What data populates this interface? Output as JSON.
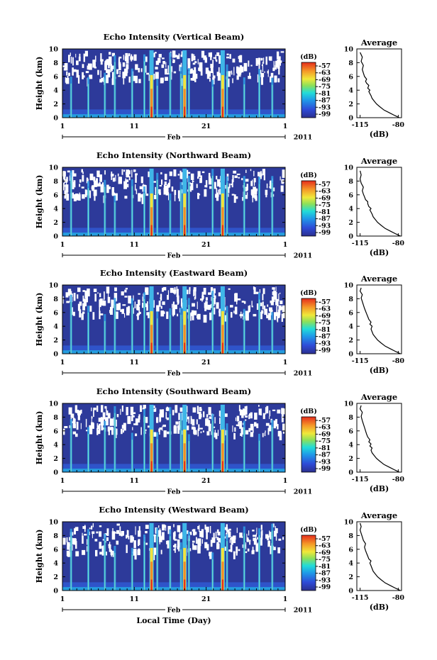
{
  "figure": {
    "xlabel": "Local Time (Day)"
  },
  "chart_data": [
    {
      "type": "heatmap",
      "title": "Echo Intensity (Vertical Beam)",
      "ylabel": "Height (km)",
      "ylim": [
        0,
        10
      ],
      "yticks": [
        "0",
        "2",
        "4",
        "6",
        "8",
        "10"
      ],
      "xlim": [
        1,
        32
      ],
      "xticks": [
        "1",
        "11",
        "21",
        "1"
      ],
      "month_label": "Feb",
      "year_label": "2011",
      "colorbar": {
        "label": "(dB)",
        "ticks": [
          "-57",
          "-63",
          "-69",
          "-75",
          "-81",
          "-87",
          "-93",
          "-99"
        ]
      },
      "average_profile": {
        "type": "line",
        "title": "Average",
        "xlabel": "(dB)",
        "xticks": [
          "-115",
          "-80"
        ],
        "xlim": [
          -118,
          -77
        ],
        "yticks": [
          "0",
          "2",
          "4",
          "6",
          "8",
          "10"
        ],
        "ylim": [
          0,
          10
        ],
        "x": [
          -79,
          -83,
          -88,
          -93,
          -97,
          -100,
          -102,
          -104,
          -105,
          -106,
          -107,
          -106,
          -108,
          -107,
          -109,
          -110,
          -109,
          -111,
          -112,
          -113,
          -112,
          -114,
          -113,
          -115
        ],
        "y": [
          0.0,
          0.3,
          0.7,
          1.1,
          1.6,
          2.0,
          2.4,
          2.8,
          3.2,
          3.5,
          3.8,
          4.0,
          4.3,
          4.7,
          5.0,
          5.3,
          5.6,
          6.0,
          6.5,
          7.0,
          7.6,
          8.2,
          8.8,
          9.5
        ]
      }
    },
    {
      "type": "heatmap",
      "title": "Echo Intensity (Northward Beam)",
      "ylabel": "Height (km)",
      "ylim": [
        0,
        10
      ],
      "yticks": [
        "0",
        "2",
        "4",
        "6",
        "8",
        "10"
      ],
      "xlim": [
        1,
        32
      ],
      "xticks": [
        "1",
        "11",
        "21",
        "1"
      ],
      "month_label": "Feb",
      "year_label": "2011",
      "colorbar": {
        "label": "(dB)",
        "ticks": [
          "-57",
          "-63",
          "-69",
          "-75",
          "-81",
          "-87",
          "-93",
          "-99"
        ]
      },
      "average_profile": {
        "type": "line",
        "title": "Average",
        "xlabel": "(dB)",
        "xticks": [
          "-115",
          "-80"
        ],
        "xlim": [
          -118,
          -77
        ],
        "yticks": [
          "0",
          "2",
          "4",
          "6",
          "8",
          "10"
        ],
        "ylim": [
          0,
          10
        ],
        "x": [
          -78,
          -82,
          -87,
          -92,
          -96,
          -99,
          -101,
          -103,
          -104,
          -105,
          -106,
          -105,
          -107,
          -108,
          -108,
          -110,
          -111,
          -112,
          -113,
          -112,
          -114,
          -115,
          -114,
          -115
        ],
        "y": [
          0.0,
          0.3,
          0.7,
          1.1,
          1.6,
          2.0,
          2.4,
          2.8,
          3.2,
          3.5,
          3.8,
          4.0,
          4.3,
          4.7,
          5.0,
          5.3,
          5.7,
          6.1,
          6.6,
          7.1,
          7.7,
          8.3,
          8.9,
          9.5
        ]
      }
    },
    {
      "type": "heatmap",
      "title": "Echo Intensity (Eastward Beam)",
      "ylabel": "Height (km)",
      "ylim": [
        0,
        10
      ],
      "yticks": [
        "0",
        "2",
        "4",
        "6",
        "8",
        "10"
      ],
      "xlim": [
        1,
        32
      ],
      "xticks": [
        "1",
        "11",
        "21",
        "1"
      ],
      "month_label": "Feb",
      "year_label": "2011",
      "colorbar": {
        "label": "(dB)",
        "ticks": [
          "-57",
          "-63",
          "-69",
          "-75",
          "-81",
          "-87",
          "-93",
          "-99"
        ]
      },
      "average_profile": {
        "type": "line",
        "title": "Average",
        "xlabel": "(dB)",
        "xticks": [
          "-115",
          "-80"
        ],
        "xlim": [
          -118,
          -77
        ],
        "yticks": [
          "0",
          "2",
          "4",
          "6",
          "8",
          "10"
        ],
        "ylim": [
          0,
          10
        ],
        "x": [
          -78,
          -82,
          -87,
          -92,
          -96,
          -99,
          -101,
          -103,
          -104,
          -105,
          -104,
          -106,
          -105,
          -107,
          -108,
          -109,
          -110,
          -111,
          -112,
          -113,
          -114,
          -113,
          -115,
          -114
        ],
        "y": [
          0.0,
          0.3,
          0.7,
          1.1,
          1.6,
          2.0,
          2.4,
          2.8,
          3.2,
          3.6,
          4.0,
          4.3,
          4.6,
          5.0,
          5.4,
          5.8,
          6.2,
          6.6,
          7.1,
          7.6,
          8.1,
          8.6,
          9.1,
          9.6
        ]
      }
    },
    {
      "type": "heatmap",
      "title": "Echo Intensity (Southward Beam)",
      "ylabel": "Height (km)",
      "ylim": [
        0,
        10
      ],
      "yticks": [
        "0",
        "2",
        "4",
        "6",
        "8",
        "10"
      ],
      "xlim": [
        1,
        32
      ],
      "xticks": [
        "1",
        "11",
        "21",
        "1"
      ],
      "month_label": "Feb",
      "year_label": "2011",
      "colorbar": {
        "label": "(dB)",
        "ticks": [
          "-57",
          "-63",
          "-69",
          "-75",
          "-81",
          "-87",
          "-93",
          "-99"
        ]
      },
      "average_profile": {
        "type": "line",
        "title": "Average",
        "xlabel": "(dB)",
        "xticks": [
          "-115",
          "-80"
        ],
        "xlim": [
          -118,
          -77
        ],
        "yticks": [
          "0",
          "2",
          "4",
          "6",
          "8",
          "10"
        ],
        "ylim": [
          0,
          10
        ],
        "x": [
          -79,
          -83,
          -88,
          -93,
          -97,
          -100,
          -102,
          -104,
          -105,
          -104,
          -106,
          -105,
          -107,
          -106,
          -108,
          -109,
          -110,
          -111,
          -112,
          -113,
          -114,
          -113,
          -115,
          -114
        ],
        "y": [
          0.0,
          0.3,
          0.7,
          1.1,
          1.6,
          2.0,
          2.4,
          2.8,
          3.2,
          3.5,
          3.8,
          4.1,
          4.4,
          4.7,
          5.1,
          5.5,
          6.0,
          6.5,
          7.0,
          7.5,
          8.1,
          8.7,
          9.2,
          9.7
        ]
      }
    },
    {
      "type": "heatmap",
      "title": "Echo Intensity (Westward Beam)",
      "ylabel": "Height (km)",
      "ylim": [
        0,
        10
      ],
      "yticks": [
        "0",
        "2",
        "4",
        "6",
        "8",
        "10"
      ],
      "xlim": [
        1,
        32
      ],
      "xticks": [
        "1",
        "11",
        "21",
        "1"
      ],
      "month_label": "Feb",
      "year_label": "2011",
      "colorbar": {
        "label": "(dB)",
        "ticks": [
          "-57",
          "-63",
          "-69",
          "-75",
          "-81",
          "-87",
          "-93",
          "-99"
        ]
      },
      "average_profile": {
        "type": "line",
        "title": "Average",
        "xlabel": "(dB)",
        "xticks": [
          "-115",
          "-80"
        ],
        "xlim": [
          -118,
          -77
        ],
        "yticks": [
          "0",
          "2",
          "4",
          "6",
          "8",
          "10"
        ],
        "ylim": [
          0,
          10
        ],
        "x": [
          -78,
          -82,
          -87,
          -92,
          -96,
          -99,
          -101,
          -103,
          -104,
          -105,
          -106,
          -105,
          -107,
          -108,
          -109,
          -110,
          -111,
          -110,
          -112,
          -113,
          -114,
          -115,
          -114,
          -115
        ],
        "y": [
          0.0,
          0.3,
          0.7,
          1.1,
          1.6,
          2.0,
          2.4,
          2.8,
          3.2,
          3.6,
          4.0,
          4.3,
          4.6,
          5.0,
          5.4,
          5.8,
          6.3,
          6.8,
          7.3,
          7.8,
          8.3,
          8.8,
          9.3,
          9.8
        ]
      }
    }
  ]
}
